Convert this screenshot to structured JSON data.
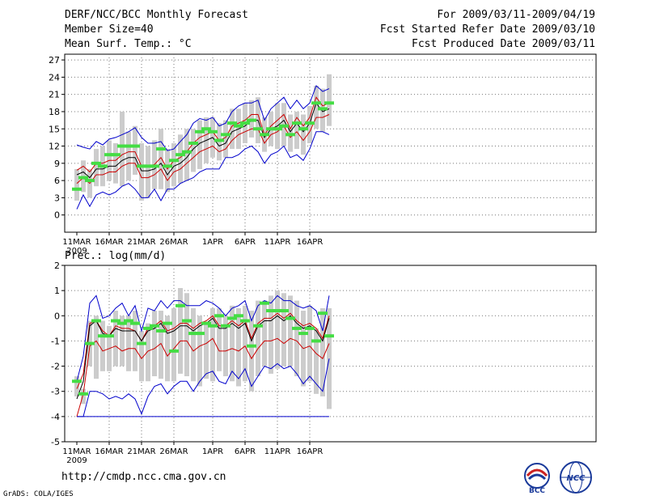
{
  "header": {
    "title": "DERF/NCC/BCC Monthly Forecast",
    "member_size": "Member Size=40",
    "variable": "Mean Surf. Temp.: °C",
    "period": "For 2009/03/11-2009/04/19",
    "fcst_started": "Fcst Started Refer Date 2009/03/10",
    "fcst_produced": "Fcst Produced Date 2009/03/11"
  },
  "footer": {
    "url": "http://cmdp.ncc.cma.gov.cn",
    "grads_credit": "GrADS: COLA/IGES",
    "logo_bcc": "BCC",
    "logo_ncc": "NCC"
  },
  "colors": {
    "mean": "#000000",
    "envelope_inner": "#cc0000",
    "envelope_outer": "#0000cc",
    "box": "#cccccc",
    "median": "#44dd44",
    "grid": "#777777"
  },
  "chart_data": [
    {
      "type": "line",
      "title": "Mean Surf. Temp.: °C",
      "x_start_label": "11MAR",
      "x_year_label": "2009",
      "xticks": [
        {
          "day": 0,
          "label": "11MAR"
        },
        {
          "day": 5,
          "label": "16MAR"
        },
        {
          "day": 10,
          "label": "21MAR"
        },
        {
          "day": 15,
          "label": "26MAR"
        },
        {
          "day": 21,
          "label": "1APR"
        },
        {
          "day": 26,
          "label": "6APR"
        },
        {
          "day": 31,
          "label": "11APR"
        },
        {
          "day": 36,
          "label": "16APR"
        }
      ],
      "ylim": [
        -3,
        28
      ],
      "yticks": [
        0,
        3,
        6,
        9,
        12,
        15,
        18,
        21,
        24,
        27
      ],
      "days": 40,
      "series": [
        {
          "name": "max",
          "role": "outer",
          "values": [
            12.2,
            11.8,
            11.5,
            12.8,
            12.2,
            13.2,
            13.5,
            14.0,
            14.5,
            15.2,
            13.5,
            12.5,
            12.5,
            12.8,
            11.2,
            11.5,
            12.8,
            14.0,
            16.0,
            16.8,
            16.5,
            17.0,
            15.5,
            16.0,
            18.0,
            19.0,
            19.5,
            19.5,
            20.0,
            16.5,
            18.5,
            19.5,
            20.5,
            18.5,
            20.0,
            18.5,
            19.5,
            22.5,
            21.5,
            22.0
          ]
        },
        {
          "name": "upper",
          "role": "inner",
          "values": [
            7.8,
            8.5,
            7.5,
            9.0,
            9.0,
            9.5,
            9.5,
            10.5,
            11.0,
            11.0,
            8.5,
            8.5,
            8.8,
            10.0,
            8.0,
            9.5,
            10.0,
            11.0,
            12.5,
            13.5,
            14.0,
            14.5,
            13.0,
            13.5,
            15.5,
            16.0,
            16.5,
            17.5,
            17.5,
            14.0,
            15.5,
            16.5,
            17.5,
            15.0,
            17.0,
            15.5,
            17.0,
            20.5,
            19.0,
            19.5
          ]
        },
        {
          "name": "mean",
          "role": "mean",
          "values": [
            7.0,
            7.5,
            6.5,
            8.0,
            8.0,
            8.5,
            8.5,
            9.5,
            10.0,
            10.0,
            7.7,
            7.7,
            8.0,
            9.0,
            7.0,
            8.5,
            9.0,
            10.0,
            11.5,
            12.5,
            13.0,
            13.5,
            12.0,
            12.5,
            14.5,
            15.0,
            15.5,
            16.5,
            16.5,
            13.5,
            15.0,
            15.5,
            16.5,
            14.5,
            16.0,
            14.5,
            16.0,
            19.5,
            18.0,
            18.5
          ]
        },
        {
          "name": "lower",
          "role": "inner",
          "values": [
            5.5,
            6.5,
            5.5,
            7.0,
            7.0,
            7.5,
            7.5,
            8.5,
            9.0,
            9.0,
            6.5,
            6.5,
            7.0,
            8.0,
            6.0,
            7.5,
            8.0,
            9.0,
            10.0,
            11.0,
            11.5,
            12.0,
            11.0,
            11.5,
            13.0,
            14.0,
            14.5,
            15.0,
            15.0,
            12.5,
            14.0,
            14.5,
            15.5,
            13.5,
            14.5,
            13.0,
            14.5,
            17.0,
            17.0,
            17.5
          ]
        },
        {
          "name": "min",
          "role": "outer",
          "values": [
            1.0,
            3.5,
            1.5,
            3.5,
            4.0,
            3.5,
            4.0,
            5.0,
            5.5,
            4.5,
            3.0,
            3.0,
            4.5,
            2.5,
            4.5,
            4.5,
            5.5,
            6.0,
            6.5,
            7.5,
            8.0,
            8.0,
            8.0,
            10.0,
            10.0,
            10.5,
            11.5,
            12.0,
            11.0,
            9.0,
            10.5,
            11.0,
            12.0,
            10.0,
            10.5,
            9.5,
            11.5,
            14.5,
            14.5,
            14.0
          ]
        }
      ],
      "boxes": [
        {
          "low": 2.5,
          "high": 8.0,
          "median": 4.5
        },
        {
          "low": 4.0,
          "high": 9.5,
          "median": 6.5
        },
        {
          "low": 3.0,
          "high": 8.0,
          "median": 6.0
        },
        {
          "low": 5.0,
          "high": 11.5,
          "median": 9.0
        },
        {
          "low": 5.0,
          "high": 12.0,
          "median": 8.5
        },
        {
          "low": 6.0,
          "high": 13.0,
          "median": 10.5
        },
        {
          "low": 5.5,
          "high": 12.5,
          "median": 10.5
        },
        {
          "low": 5.0,
          "high": 18.0,
          "median": 12.0
        },
        {
          "low": 6.0,
          "high": 14.5,
          "median": 12.0
        },
        {
          "low": 7.0,
          "high": 15.5,
          "median": 12.0
        },
        {
          "low": 2.5,
          "high": 12.5,
          "median": 8.5
        },
        {
          "low": 3.0,
          "high": 12.0,
          "median": 8.5
        },
        {
          "low": 4.5,
          "high": 13.0,
          "median": 8.5
        },
        {
          "low": 4.5,
          "high": 15.0,
          "median": 11.5
        },
        {
          "low": 4.0,
          "high": 11.5,
          "median": 8.5
        },
        {
          "low": 5.0,
          "high": 12.5,
          "median": 9.5
        },
        {
          "low": 5.5,
          "high": 14.0,
          "median": 10.5
        },
        {
          "low": 6.0,
          "high": 15.0,
          "median": 11.0
        },
        {
          "low": 7.5,
          "high": 15.0,
          "median": 12.5
        },
        {
          "low": 8.0,
          "high": 16.5,
          "median": 14.5
        },
        {
          "low": 9.0,
          "high": 17.0,
          "median": 15.0
        },
        {
          "low": 10.0,
          "high": 17.0,
          "median": 14.5
        },
        {
          "low": 9.5,
          "high": 16.0,
          "median": 13.0
        },
        {
          "low": 10.0,
          "high": 16.5,
          "median": 14.0
        },
        {
          "low": 11.5,
          "high": 18.5,
          "median": 16.0
        },
        {
          "low": 11.5,
          "high": 18.5,
          "median": 15.5
        },
        {
          "low": 12.5,
          "high": 19.5,
          "median": 16.0
        },
        {
          "low": 13.5,
          "high": 20.0,
          "median": 16.5
        },
        {
          "low": 12.5,
          "high": 20.5,
          "median": 15.0
        },
        {
          "low": 11.0,
          "high": 17.0,
          "median": 14.0
        },
        {
          "low": 12.0,
          "high": 18.0,
          "median": 15.0
        },
        {
          "low": 11.5,
          "high": 19.5,
          "median": 15.0
        },
        {
          "low": 12.0,
          "high": 19.5,
          "median": 15.5
        },
        {
          "low": 11.0,
          "high": 17.5,
          "median": 14.0
        },
        {
          "low": 11.5,
          "high": 18.0,
          "median": 16.0
        },
        {
          "low": 10.5,
          "high": 17.5,
          "median": 15.0
        },
        {
          "low": 12.5,
          "high": 19.0,
          "median": 16.0
        },
        {
          "low": 15.0,
          "high": 22.5,
          "median": 19.5
        },
        {
          "low": 14.5,
          "high": 22.0,
          "median": 18.5
        },
        {
          "low": 15.5,
          "high": 24.5,
          "median": 19.5
        }
      ]
    },
    {
      "type": "line",
      "title": "Prec.: log(mm/d)",
      "x_start_label": "11MAR",
      "x_year_label": "2009",
      "xticks": [
        {
          "day": 0,
          "label": "11MAR"
        },
        {
          "day": 5,
          "label": "16MAR"
        },
        {
          "day": 10,
          "label": "21MAR"
        },
        {
          "day": 15,
          "label": "26MAR"
        },
        {
          "day": 21,
          "label": "1APR"
        },
        {
          "day": 26,
          "label": "6APR"
        },
        {
          "day": 31,
          "label": "11APR"
        },
        {
          "day": 36,
          "label": "16APR"
        }
      ],
      "ylim": [
        -5,
        2
      ],
      "yticks": [
        -5,
        -4,
        -3,
        -2,
        -1,
        0,
        1,
        2
      ],
      "days": 40,
      "baseline": -4,
      "series": [
        {
          "name": "max",
          "role": "outer",
          "values": [
            -2.6,
            -1.6,
            0.5,
            0.8,
            -0.1,
            0.0,
            0.3,
            0.5,
            0.0,
            0.4,
            -0.6,
            0.3,
            0.2,
            0.6,
            0.3,
            0.6,
            0.6,
            0.4,
            0.4,
            0.4,
            0.6,
            0.5,
            0.3,
            0.0,
            0.3,
            0.4,
            0.6,
            -0.2,
            0.4,
            0.6,
            0.5,
            0.8,
            0.6,
            0.6,
            0.4,
            0.3,
            0.4,
            0.2,
            -0.6,
            0.8
          ]
        },
        {
          "name": "upper",
          "role": "inner",
          "values": [
            -2.9,
            -2.3,
            -0.3,
            -0.2,
            -0.6,
            -0.8,
            -0.4,
            -0.5,
            -0.5,
            -0.6,
            -1.0,
            -0.5,
            -0.4,
            -0.2,
            -0.6,
            -0.5,
            -0.3,
            -0.3,
            -0.5,
            -0.3,
            -0.2,
            0.0,
            -0.4,
            -0.4,
            -0.2,
            -0.4,
            -0.2,
            -0.9,
            -0.3,
            -0.1,
            -0.1,
            0.1,
            -0.1,
            0.1,
            -0.2,
            -0.4,
            -0.3,
            -0.5,
            -0.9,
            0.0
          ]
        },
        {
          "name": "mean",
          "role": "mean",
          "values": [
            -3.3,
            -2.6,
            -0.4,
            -0.2,
            -0.7,
            -0.8,
            -0.5,
            -0.6,
            -0.6,
            -0.6,
            -1.0,
            -0.6,
            -0.5,
            -0.3,
            -0.7,
            -0.6,
            -0.4,
            -0.4,
            -0.6,
            -0.4,
            -0.3,
            -0.1,
            -0.5,
            -0.5,
            -0.3,
            -0.5,
            -0.3,
            -1.0,
            -0.4,
            -0.2,
            -0.2,
            0.0,
            -0.2,
            0.0,
            -0.3,
            -0.5,
            -0.4,
            -0.6,
            -1.0,
            -0.1
          ]
        },
        {
          "name": "lower",
          "role": "inner",
          "values": [
            -4.0,
            -3.1,
            -1.2,
            -1.0,
            -1.4,
            -1.3,
            -1.2,
            -1.4,
            -1.3,
            -1.3,
            -1.7,
            -1.4,
            -1.3,
            -1.1,
            -1.6,
            -1.3,
            -1.0,
            -1.0,
            -1.4,
            -1.2,
            -1.1,
            -0.9,
            -1.4,
            -1.4,
            -1.3,
            -1.4,
            -1.2,
            -1.7,
            -1.3,
            -1.0,
            -1.0,
            -0.9,
            -1.1,
            -0.9,
            -1.0,
            -1.3,
            -1.2,
            -1.5,
            -1.7,
            -1.1
          ]
        },
        {
          "name": "min",
          "role": "outer",
          "values": [
            -4.0,
            -4.0,
            -3.0,
            -3.0,
            -3.1,
            -3.3,
            -3.2,
            -3.3,
            -3.1,
            -3.3,
            -3.9,
            -3.2,
            -2.8,
            -2.7,
            -3.1,
            -2.8,
            -2.6,
            -2.6,
            -3.0,
            -2.6,
            -2.3,
            -2.2,
            -2.6,
            -2.7,
            -2.2,
            -2.5,
            -2.1,
            -2.8,
            -2.4,
            -2.0,
            -2.1,
            -1.9,
            -2.1,
            -2.0,
            -2.3,
            -2.7,
            -2.4,
            -2.7,
            -3.0,
            -1.7
          ]
        }
      ],
      "boxes": [
        {
          "low": -3.2,
          "high": -2.4,
          "median": -2.6
        },
        {
          "low": -3.5,
          "high": -2.9,
          "median": -3.1
        },
        {
          "low": -2.0,
          "high": -0.2,
          "median": -1.1
        },
        {
          "low": -2.5,
          "high": 0.0,
          "median": -0.2
        },
        {
          "low": -2.2,
          "high": -0.2,
          "median": -0.8
        },
        {
          "low": -2.2,
          "high": -0.4,
          "median": -0.8
        },
        {
          "low": -2.0,
          "high": 0.2,
          "median": -0.2
        },
        {
          "low": -2.0,
          "high": 0.0,
          "median": -0.3
        },
        {
          "low": -2.2,
          "high": 0.0,
          "median": -0.2
        },
        {
          "low": -2.2,
          "high": 0.2,
          "median": -0.3
        },
        {
          "low": -2.6,
          "high": -0.6,
          "median": -1.1
        },
        {
          "low": -2.6,
          "high": -0.3,
          "median": -0.5
        },
        {
          "low": -2.4,
          "high": 0.2,
          "median": -0.4
        },
        {
          "low": -2.5,
          "high": 0.2,
          "median": -0.6
        },
        {
          "low": -2.6,
          "high": 0.0,
          "median": -0.3
        },
        {
          "low": -2.6,
          "high": 0.3,
          "median": -1.4
        },
        {
          "low": -2.3,
          "high": 1.1,
          "median": 0.4
        },
        {
          "low": -2.4,
          "high": 0.9,
          "median": -0.2
        },
        {
          "low": -2.6,
          "high": 0.3,
          "median": -0.7
        },
        {
          "low": -2.8,
          "high": 0.0,
          "median": -0.7
        },
        {
          "low": -2.5,
          "high": -0.3,
          "median": -0.3
        },
        {
          "low": -2.6,
          "high": 0.3,
          "median": -0.4
        },
        {
          "low": -2.2,
          "high": 0.3,
          "median": 0.0
        },
        {
          "low": -2.4,
          "high": 0.0,
          "median": -0.4
        },
        {
          "low": -2.6,
          "high": 0.4,
          "median": -0.1
        },
        {
          "low": -2.8,
          "high": 0.3,
          "median": 0.0
        },
        {
          "low": -2.6,
          "high": 0.4,
          "median": -0.2
        },
        {
          "low": -3.0,
          "high": 0.2,
          "median": -1.2
        },
        {
          "low": -2.4,
          "high": 0.6,
          "median": -0.4
        },
        {
          "low": -2.0,
          "high": 0.6,
          "median": 0.5
        },
        {
          "low": -2.3,
          "high": 0.8,
          "median": 0.2
        },
        {
          "low": -2.1,
          "high": 1.0,
          "median": 0.2
        },
        {
          "low": -2.0,
          "high": 0.9,
          "median": 0.2
        },
        {
          "low": -2.0,
          "high": 0.8,
          "median": -0.1
        },
        {
          "low": -2.4,
          "high": 0.6,
          "median": -0.5
        },
        {
          "low": -2.8,
          "high": 0.2,
          "median": -0.7
        },
        {
          "low": -2.6,
          "high": 0.4,
          "median": -0.5
        },
        {
          "low": -3.1,
          "high": -0.5,
          "median": -1.0
        },
        {
          "low": -3.2,
          "high": 0.3,
          "median": 0.1
        },
        {
          "low": -3.7,
          "high": 0.3,
          "median": -0.8
        }
      ]
    }
  ]
}
